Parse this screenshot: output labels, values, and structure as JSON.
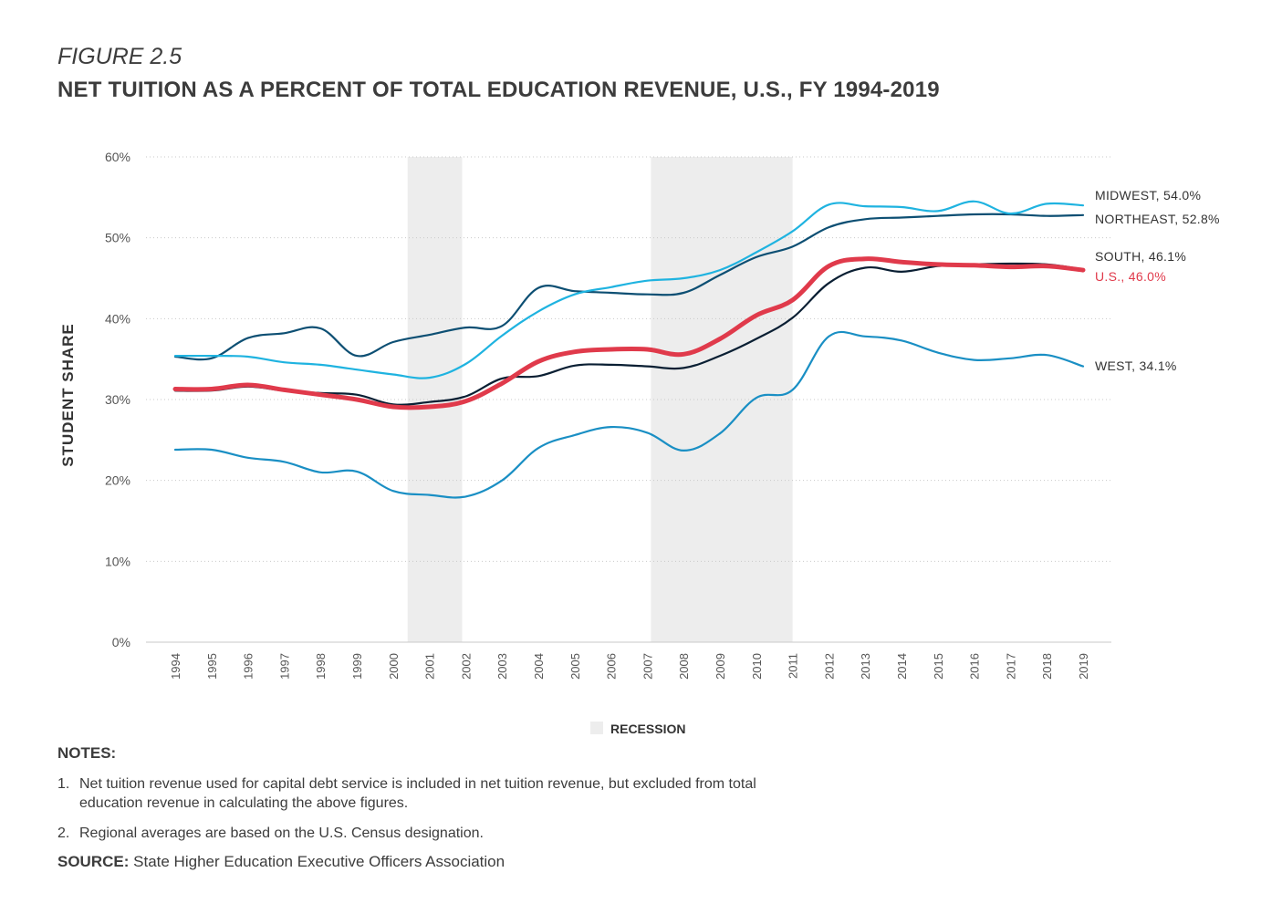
{
  "figure": {
    "label": "FIGURE 2.5",
    "title": "NET TUITION AS A PERCENT OF TOTAL EDUCATION REVENUE, U.S., FY 1994-2019"
  },
  "chart_data": {
    "type": "line",
    "ylabel": "STUDENT SHARE",
    "xlabel": "",
    "ylim": [
      0,
      60
    ],
    "yticks": [
      "0%",
      "10%",
      "20%",
      "30%",
      "40%",
      "50%",
      "60%"
    ],
    "grid": "horizontal dotted",
    "categories": [
      "1994",
      "1995",
      "1996",
      "1997",
      "1998",
      "1999",
      "2000",
      "2001",
      "2002",
      "2003",
      "2004",
      "2005",
      "2006",
      "2007",
      "2008",
      "2009",
      "2010",
      "2011",
      "2012",
      "2013",
      "2014",
      "2015",
      "2016",
      "2017",
      "2018",
      "2019"
    ],
    "recessions": [
      {
        "start": "2000.4",
        "end": "2001.9"
      },
      {
        "start": "2007.1",
        "end": "2011.0"
      }
    ],
    "legend": {
      "label": "RECESSION",
      "color": "#ededed",
      "placement": "bottom-center"
    },
    "series": [
      {
        "name": "NORTHEAST",
        "end_label": "NORTHEAST, 52.8%",
        "color": "#0d4f73",
        "width": 2.2,
        "values": [
          35.3,
          35.1,
          37.6,
          38.2,
          38.8,
          35.4,
          37.1,
          38.0,
          38.9,
          39.1,
          43.8,
          43.4,
          43.2,
          43.0,
          43.2,
          45.4,
          47.6,
          48.9,
          51.3,
          52.3,
          52.5,
          52.7,
          52.9,
          52.9,
          52.7,
          52.8
        ]
      },
      {
        "name": "MIDWEST",
        "end_label": "MIDWEST, 54.0%",
        "color": "#1fb3e0",
        "width": 2.2,
        "values": [
          35.4,
          35.4,
          35.3,
          34.6,
          34.3,
          33.7,
          33.1,
          32.7,
          34.4,
          37.9,
          40.9,
          43.0,
          43.9,
          44.7,
          45.0,
          46.0,
          48.2,
          50.8,
          54.1,
          53.9,
          53.8,
          53.3,
          54.5,
          53.0,
          54.2,
          54.0
        ]
      },
      {
        "name": "SOUTH",
        "end_label": "SOUTH, 46.1%",
        "color": "#0a1f33",
        "width": 2.2,
        "values": [
          31.1,
          31.1,
          31.6,
          31.1,
          30.8,
          30.6,
          29.4,
          29.7,
          30.4,
          32.6,
          32.9,
          34.2,
          34.3,
          34.1,
          33.9,
          35.4,
          37.5,
          40.1,
          44.4,
          46.3,
          45.8,
          46.5,
          46.7,
          46.8,
          46.7,
          46.1
        ]
      },
      {
        "name": "WEST",
        "end_label": "WEST, 34.1%",
        "color": "#1a8fc4",
        "width": 2.2,
        "values": [
          23.8,
          23.8,
          22.8,
          22.3,
          21.0,
          21.1,
          18.7,
          18.2,
          18.0,
          20.0,
          24.0,
          25.6,
          26.6,
          25.9,
          23.7,
          25.8,
          30.2,
          31.2,
          37.8,
          37.8,
          37.3,
          35.8,
          34.9,
          35.1,
          35.5,
          34.1
        ]
      },
      {
        "name": "U.S.",
        "end_label": "U.S., 46.0%",
        "color": "#e03a4b",
        "width": 5,
        "values": [
          31.3,
          31.3,
          31.8,
          31.2,
          30.6,
          30.0,
          29.1,
          29.1,
          29.8,
          32.0,
          34.7,
          35.9,
          36.2,
          36.2,
          35.6,
          37.5,
          40.4,
          42.3,
          46.5,
          47.4,
          47.0,
          46.7,
          46.6,
          46.4,
          46.5,
          46.0
        ]
      }
    ]
  },
  "notes": {
    "heading": "NOTES:",
    "items": [
      {
        "num": "1.",
        "text": "Net tuition revenue used for capital debt service is included in net tuition revenue, but excluded from total education revenue in calculating the above figures."
      },
      {
        "num": "2.",
        "text": "Regional averages are based on the U.S. Census designation."
      }
    ]
  },
  "source": {
    "label": "SOURCE:",
    "text": "State Higher Education Executive Officers Association"
  }
}
